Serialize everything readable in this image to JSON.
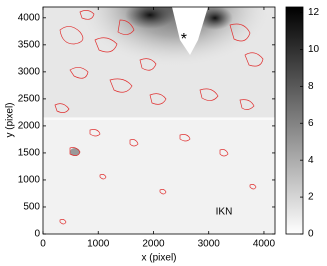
{
  "chart_data": {
    "type": "heatmap",
    "x_label": "x (pixel)",
    "y_label": "y (pixel)",
    "xlim": [
      0,
      4200
    ],
    "xticks": [
      0,
      1000,
      2000,
      3000,
      4000
    ],
    "ylim": [
      0,
      4200
    ],
    "yticks": [
      0,
      500,
      1000,
      1500,
      2000,
      2500,
      3000,
      3500,
      4000
    ],
    "colorbar": {
      "lim": [
        0,
        12.3
      ],
      "ticks": [
        0,
        2,
        4,
        6,
        8,
        10,
        12
      ],
      "colors": [
        "#ffffff",
        "#000000"
      ]
    },
    "markers": [
      {
        "label": "*",
        "x": 2550,
        "y": 3650
      }
    ],
    "annotations": [
      "IKN"
    ],
    "contour_color": "#e03030"
  }
}
